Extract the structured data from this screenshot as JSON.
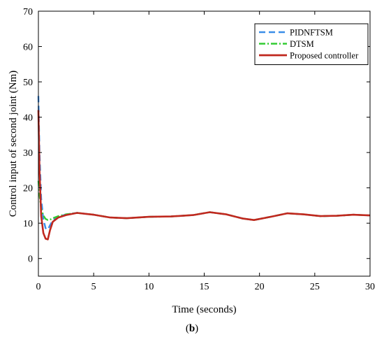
{
  "chart_data": {
    "type": "line",
    "title": "",
    "xlabel": "Time (seconds)",
    "ylabel": "Control input of second joint (Nm)",
    "xlim": [
      0,
      30
    ],
    "ylim": [
      -5,
      70
    ],
    "xticks": [
      0,
      5,
      10,
      15,
      20,
      25,
      30
    ],
    "yticks": [
      0,
      10,
      20,
      30,
      40,
      50,
      60,
      70
    ],
    "grid": false,
    "legend_position": "top-right",
    "series": [
      {
        "name": "PIDNFTSM",
        "color": "#3a8ee8",
        "dash": "dashed",
        "x": [
          0,
          0.1,
          0.25,
          0.45,
          0.65,
          0.85,
          1.05,
          1.3,
          1.8,
          2.5,
          3.5,
          5,
          6.5,
          8,
          10,
          12,
          14,
          15.5,
          17,
          18.5,
          19.5,
          21,
          22.5,
          24,
          25.5,
          27,
          28.5,
          30
        ],
        "values": [
          46,
          30,
          17,
          11,
          8.6,
          8.2,
          9.4,
          10.8,
          11.8,
          12.5,
          12.9,
          12.4,
          11.6,
          11.4,
          11.8,
          11.9,
          12.3,
          13.1,
          12.5,
          11.3,
          10.9,
          11.8,
          12.8,
          12.5,
          12.0,
          12.1,
          12.4,
          12.2
        ]
      },
      {
        "name": "DTSM",
        "color": "#33cc33",
        "dash": "dashdot",
        "x": [
          0,
          0.1,
          0.25,
          0.45,
          0.65,
          0.85,
          1.05,
          1.3,
          1.8,
          2.5,
          3.5,
          5,
          6.5,
          8,
          10,
          12,
          14,
          15.5,
          17,
          18.5,
          19.5,
          21,
          22.5,
          24,
          25.5,
          27,
          28.5,
          30
        ],
        "values": [
          22,
          18,
          14,
          12.2,
          11.2,
          10.9,
          11.0,
          11.4,
          12.0,
          12.5,
          12.9,
          12.4,
          11.6,
          11.4,
          11.8,
          11.9,
          12.3,
          13.1,
          12.5,
          11.3,
          10.9,
          11.8,
          12.8,
          12.5,
          12.0,
          12.1,
          12.4,
          12.2
        ]
      },
      {
        "name": "Proposed controller",
        "color": "#c0281e",
        "dash": "solid",
        "x": [
          0,
          0.1,
          0.25,
          0.45,
          0.65,
          0.85,
          1.05,
          1.3,
          1.8,
          2.5,
          3.5,
          5,
          6.5,
          8,
          10,
          12,
          14,
          15.5,
          17,
          18.5,
          19.5,
          21,
          22.5,
          24,
          25.5,
          27,
          28.5,
          30
        ],
        "values": [
          42,
          25,
          12,
          7.2,
          5.6,
          5.4,
          8.0,
          10.4,
          11.6,
          12.3,
          12.9,
          12.4,
          11.6,
          11.4,
          11.8,
          11.9,
          12.3,
          13.1,
          12.5,
          11.3,
          10.9,
          11.8,
          12.8,
          12.5,
          12.0,
          12.1,
          12.4,
          12.2
        ]
      }
    ]
  },
  "caption": {
    "prefix": "(",
    "label": "b",
    "suffix": ")"
  },
  "colors": {
    "axis": "#000000",
    "background": "#ffffff"
  }
}
